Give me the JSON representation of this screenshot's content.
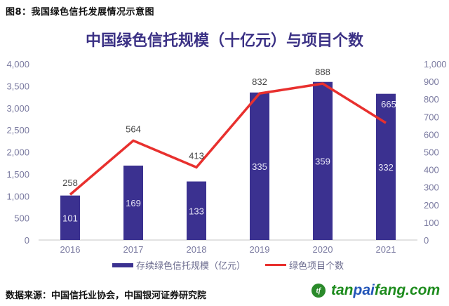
{
  "figure_caption": "图8：我国绿色信托发展情况示意图",
  "source_note": "数据来源：中国信托业协会，中国银河证券研究院",
  "watermark": {
    "logo_icon": "tanpaifang-logo-icon",
    "part1": "tan",
    "part2": "pai",
    "part3": "fang.com"
  },
  "colors": {
    "bar": "#3b3190",
    "line": "#e8302e",
    "title": "#3b3185",
    "axis_text": "#7a7aa0"
  },
  "chart_data": {
    "type": "bar+line",
    "title": "中国绿色信托规模（十亿元）与项目个数",
    "categories": [
      "2016",
      "2017",
      "2018",
      "2019",
      "2020",
      "2021"
    ],
    "series": [
      {
        "name": "存续绿色信托规模（亿元）",
        "type": "bar",
        "axis": "left",
        "values": [
          1010,
          1690,
          1330,
          3350,
          3590,
          3320
        ],
        "data_labels": [
          "101",
          "169",
          "133",
          "335",
          "359",
          "332"
        ]
      },
      {
        "name": "绿色项目个数",
        "type": "line",
        "axis": "right",
        "values": [
          258,
          564,
          413,
          832,
          888,
          665
        ],
        "data_labels": [
          "258",
          "564",
          "413",
          "832",
          "888",
          "665"
        ]
      }
    ],
    "y_left": {
      "range": [
        0,
        4000
      ],
      "ticks": [
        "0",
        "500",
        "1,000",
        "1,500",
        "2,000",
        "2,500",
        "3,000",
        "3,500",
        "4,000"
      ]
    },
    "y_right": {
      "range": [
        0,
        1000
      ],
      "ticks": [
        "0",
        "100",
        "200",
        "300",
        "400",
        "500",
        "600",
        "700",
        "800",
        "900",
        "1,000"
      ]
    },
    "grid": false,
    "legend_position": "bottom"
  }
}
